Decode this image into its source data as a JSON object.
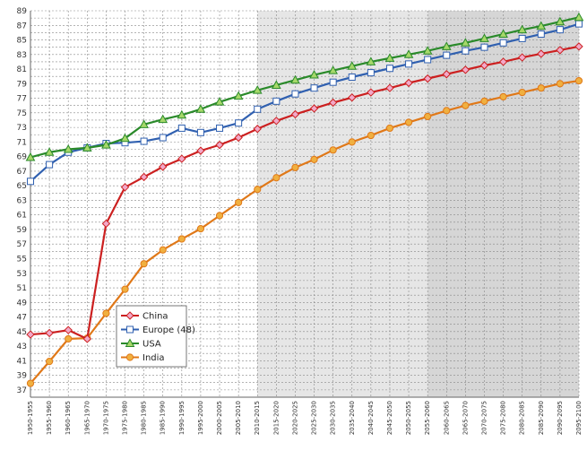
{
  "chart_data": {
    "type": "line",
    "title": "",
    "xlabel": "",
    "ylabel": "",
    "categories": [
      "1950-1955",
      "1955-1960",
      "1960-1965",
      "1965-1970",
      "1970-1975",
      "1975-1980",
      "1980-1985",
      "1985-1990",
      "1990-1995",
      "1995-2000",
      "2000-2005",
      "2005-2010",
      "2010-2015",
      "2015-2020",
      "2020-2025",
      "2025-2030",
      "2030-2035",
      "2035-2040",
      "2040-2045",
      "2045-2050",
      "2050-2055",
      "2055-2060",
      "2060-2065",
      "2065-2070",
      "2070-2075",
      "2075-2080",
      "2080-2085",
      "2085-2090",
      "2090-2095",
      "2095-2100"
    ],
    "y_ticks": [
      37,
      39,
      41,
      43,
      45,
      47,
      49,
      51,
      53,
      55,
      57,
      59,
      61,
      63,
      65,
      67,
      69,
      71,
      73,
      75,
      77,
      79,
      81,
      83,
      85,
      87,
      89
    ],
    "ylim": [
      36,
      89
    ],
    "grid": true,
    "legend_position": "lower-left",
    "shaded_regions": [
      {
        "from": "2010-2015",
        "to": "2095-2100",
        "color": "#e6e6e6"
      },
      {
        "from": "2055-2060",
        "to": "2095-2100",
        "color": "#d6d6d6"
      }
    ],
    "series": [
      {
        "name": "China",
        "color": "#cc2020",
        "marker": "diamond",
        "marker_fill": "#f2a9c8",
        "values": [
          44.6,
          44.8,
          45.2,
          44.0,
          59.8,
          64.8,
          66.2,
          67.6,
          68.7,
          69.8,
          70.6,
          71.6,
          72.8,
          73.9,
          74.8,
          75.6,
          76.4,
          77.1,
          77.8,
          78.4,
          79.1,
          79.7,
          80.3,
          80.9,
          81.5,
          82.0,
          82.6,
          83.1,
          83.6,
          84.1
        ]
      },
      {
        "name": "Europe (48)",
        "color": "#3060b0",
        "marker": "square",
        "marker_fill": "#ffffff",
        "values": [
          65.6,
          67.9,
          69.6,
          70.2,
          70.8,
          70.9,
          71.1,
          71.6,
          72.9,
          72.3,
          72.9,
          73.6,
          75.5,
          76.6,
          77.6,
          78.4,
          79.2,
          79.9,
          80.5,
          81.1,
          81.7,
          82.3,
          82.9,
          83.5,
          84.0,
          84.6,
          85.2,
          85.8,
          86.4,
          87.2
        ]
      },
      {
        "name": "USA",
        "color": "#2a8a2a",
        "marker": "triangle",
        "marker_fill": "#a6d86a",
        "values": [
          68.9,
          69.6,
          70.0,
          70.2,
          70.6,
          71.5,
          73.4,
          74.1,
          74.7,
          75.5,
          76.5,
          77.3,
          78.1,
          78.8,
          79.5,
          80.2,
          80.8,
          81.4,
          82.0,
          82.5,
          83.0,
          83.5,
          84.1,
          84.6,
          85.2,
          85.8,
          86.4,
          86.9,
          87.5,
          88.1
        ]
      },
      {
        "name": "India",
        "color": "#e07818",
        "marker": "circle",
        "marker_fill": "#f0b040",
        "values": [
          37.9,
          40.9,
          44.0,
          44.1,
          47.5,
          50.8,
          54.3,
          56.2,
          57.7,
          59.1,
          60.9,
          62.7,
          64.5,
          66.1,
          67.5,
          68.6,
          69.9,
          71.0,
          71.9,
          72.9,
          73.7,
          74.5,
          75.3,
          76.0,
          76.6,
          77.2,
          77.8,
          78.4,
          79.0,
          79.4
        ]
      }
    ]
  }
}
